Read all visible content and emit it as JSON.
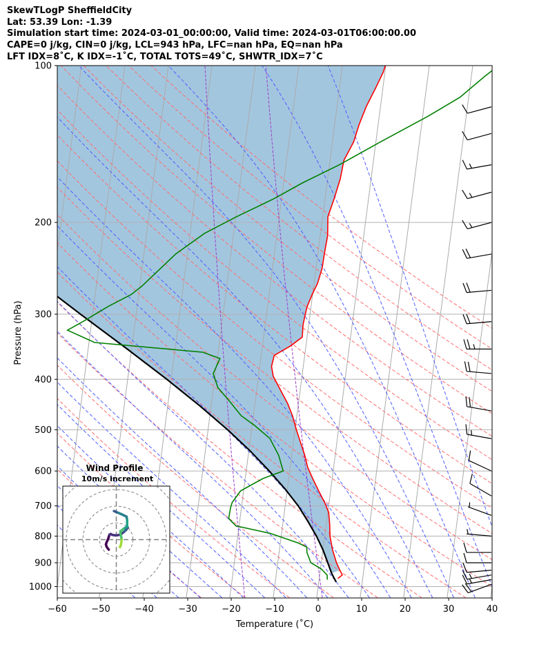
{
  "header": {
    "line1": "SkewTLogP SheffieldCity",
    "line2": "Lat: 53.39   Lon: -1.39",
    "line3": "Simulation start time: 2024-03-01_00:00:00, Valid time: 2024-03-01T06:00:00.00",
    "line4": "CAPE=0 j/kg, CIN=0 j/kg, LCL=943 hPa, LFC=nan hPa, EQ=nan hPa",
    "line5": "LFT IDX=8˚C, K IDX=-1˚C, TOTAL TOTS=49˚C, SHWTR_IDX=7˚C"
  },
  "chart_data": {
    "type": "skewt",
    "xlabel": "Temperature (˚C)",
    "ylabel": "Pressure (hPa)",
    "xlim": [
      -60,
      40
    ],
    "ylim": [
      1050,
      100
    ],
    "y_scale": "log",
    "x_ticks": [
      "−60",
      "−50",
      "−40",
      "−30",
      "−20",
      "−10",
      "0",
      "10",
      "20",
      "30",
      "40"
    ],
    "y_ticks": [
      "1000",
      "900",
      "800",
      "700",
      "600",
      "500",
      "400",
      "300",
      "200",
      "100"
    ],
    "grid": true,
    "colors": {
      "temperature": "#ff0000",
      "dewpoint": "#008000",
      "parcel": "#000000",
      "shading": "#a3c6df",
      "dry_adiabats": "#ff6b6b",
      "moist_adiabats": "#4d5cff",
      "isotherms": "#aaaaaa",
      "mixing_ratio": "#9a3fc8"
    },
    "series": [
      {
        "key": "temperature",
        "points": [
          [
            4.3,
            965
          ],
          [
            5.2,
            950
          ],
          [
            4.5,
            930
          ],
          [
            3.5,
            900
          ],
          [
            2.2,
            850
          ],
          [
            1.2,
            800
          ],
          [
            0.8,
            760
          ],
          [
            0.2,
            720
          ],
          [
            -1.0,
            690
          ],
          [
            -2.5,
            660
          ],
          [
            -4.5,
            620
          ],
          [
            -6.0,
            590
          ],
          [
            -7.0,
            560
          ],
          [
            -8.3,
            530
          ],
          [
            -9.7,
            500
          ],
          [
            -11.0,
            470
          ],
          [
            -12.5,
            445
          ],
          [
            -14.5,
            420
          ],
          [
            -16.6,
            395
          ],
          [
            -17.3,
            378
          ],
          [
            -17.0,
            360
          ],
          [
            -13.5,
            345
          ],
          [
            -11.1,
            332
          ],
          [
            -11.3,
            315
          ],
          [
            -11.1,
            300
          ],
          [
            -10.9,
            290
          ],
          [
            -10.1,
            275
          ],
          [
            -9.2,
            262
          ],
          [
            -8.6,
            245
          ],
          [
            -8.5,
            228
          ],
          [
            -8.3,
            212
          ],
          [
            -8.8,
            195
          ],
          [
            -7.9,
            180
          ],
          [
            -7.1,
            165
          ],
          [
            -6.8,
            152
          ],
          [
            -5.1,
            140
          ],
          [
            -4.4,
            130
          ],
          [
            -3.3,
            120
          ],
          [
            -1.6,
            110
          ],
          [
            -0.4,
            103
          ],
          [
            -0.1,
            100
          ]
        ]
      },
      {
        "key": "dewpoint",
        "points": [
          [
            1.9,
            970
          ],
          [
            1.7,
            950
          ],
          [
            0.2,
            925
          ],
          [
            -2.4,
            900
          ],
          [
            -3.6,
            860
          ],
          [
            -3.8,
            840
          ],
          [
            -5.8,
            825
          ],
          [
            -12.7,
            790
          ],
          [
            -20.7,
            765
          ],
          [
            -22.6,
            740
          ],
          [
            -22.5,
            705
          ],
          [
            -22.3,
            690
          ],
          [
            -20.7,
            655
          ],
          [
            -15.9,
            620
          ],
          [
            -11.5,
            600
          ],
          [
            -13.0,
            560
          ],
          [
            -15.5,
            520
          ],
          [
            -19.5,
            490
          ],
          [
            -22.8,
            470
          ],
          [
            -26.0,
            440
          ],
          [
            -29.0,
            415
          ],
          [
            -30.5,
            390
          ],
          [
            -29.4,
            365
          ],
          [
            -33.5,
            355
          ],
          [
            -58.7,
            340
          ],
          [
            -65.3,
            322
          ],
          [
            -62.0,
            310
          ],
          [
            -56.7,
            290
          ],
          [
            -51.7,
            275
          ],
          [
            -49.5,
            265
          ],
          [
            -46.7,
            250
          ],
          [
            -42.7,
            230
          ],
          [
            -36.7,
            210
          ],
          [
            -29.8,
            195
          ],
          [
            -21.7,
            180
          ],
          [
            -15.7,
            168
          ],
          [
            -7.7,
            155
          ],
          [
            1.1,
            140
          ],
          [
            11.3,
            125
          ],
          [
            18.0,
            115
          ],
          [
            23.0,
            105
          ],
          [
            25.9,
            100
          ]
        ]
      },
      {
        "key": "parcel",
        "points": [
          [
            4.0,
            980
          ],
          [
            3.3,
            960
          ],
          [
            2.7,
            943
          ],
          [
            1.5,
            900
          ],
          [
            0.0,
            850
          ],
          [
            -1.9,
            800
          ],
          [
            -4.3,
            750
          ],
          [
            -7.0,
            700
          ],
          [
            -10.5,
            650
          ],
          [
            -14.7,
            600
          ],
          [
            -19.6,
            550
          ],
          [
            -25.5,
            500
          ],
          [
            -32.6,
            450
          ],
          [
            -41.0,
            400
          ],
          [
            -51.0,
            350
          ],
          [
            -62.8,
            300
          ],
          [
            -76.5,
            250
          ],
          [
            -92.2,
            200
          ],
          [
            -111.0,
            150
          ],
          [
            -124.0,
            120
          ],
          [
            -133.8,
            100
          ]
        ]
      }
    ],
    "wind_barbs_kt": [
      {
        "p": 990,
        "speed": 21,
        "dir": 250
      },
      {
        "p": 970,
        "speed": 17,
        "dir": 260
      },
      {
        "p": 950,
        "speed": 15,
        "dir": 260
      },
      {
        "p": 930,
        "speed": 12,
        "dir": 265
      },
      {
        "p": 900,
        "speed": 10,
        "dir": 270
      },
      {
        "p": 860,
        "speed": 10,
        "dir": 270
      },
      {
        "p": 800,
        "speed": 8,
        "dir": 275
      },
      {
        "p": 730,
        "speed": 8,
        "dir": 290
      },
      {
        "p": 670,
        "speed": 10,
        "dir": 300
      },
      {
        "p": 600,
        "speed": 11,
        "dir": 295
      },
      {
        "p": 520,
        "speed": 16,
        "dir": 280
      },
      {
        "p": 460,
        "speed": 20,
        "dir": 280
      },
      {
        "p": 390,
        "speed": 22,
        "dir": 275
      },
      {
        "p": 350,
        "speed": 26,
        "dir": 270
      },
      {
        "p": 310,
        "speed": 22,
        "dir": 265
      },
      {
        "p": 270,
        "speed": 23,
        "dir": 265
      },
      {
        "p": 230,
        "speed": 22,
        "dir": 260
      },
      {
        "p": 200,
        "speed": 16,
        "dir": 255
      },
      {
        "p": 175,
        "speed": 18,
        "dir": 255
      },
      {
        "p": 155,
        "speed": 15,
        "dir": 260
      },
      {
        "p": 135,
        "speed": 12,
        "dir": 255
      },
      {
        "p": 120,
        "speed": 11,
        "dir": 255
      }
    ],
    "hodograph": {
      "title": "Wind Profile",
      "subtitle": "10m/s increment",
      "rings_ms": [
        10,
        20,
        30,
        40
      ],
      "range_ms": [
        -25,
        25
      ],
      "colormap": "viridis",
      "uv_ms": [
        [
          2.2,
          -4.5
        ],
        [
          2.7,
          -3.4
        ],
        [
          3.0,
          -1.8
        ],
        [
          3.2,
          -0.2
        ],
        [
          3.0,
          1.6
        ],
        [
          2.6,
          3.3
        ],
        [
          2.5,
          5.0
        ],
        [
          4.0,
          6.2
        ],
        [
          6.5,
          7.8
        ],
        [
          6.5,
          10.1
        ],
        [
          6.5,
          11.8
        ],
        [
          6.1,
          13.8
        ],
        [
          4.4,
          14.6
        ],
        [
          2.7,
          15.4
        ],
        [
          1.3,
          16.0
        ],
        [
          -0.4,
          16.7
        ],
        [
          -1.4,
          17.1
        ]
      ],
      "uv_ms_lower": [
        [
          -4.5,
          -6.0
        ],
        [
          -5.3,
          -5.0
        ],
        [
          -5.9,
          -4.0
        ],
        [
          -6.2,
          -2.8
        ],
        [
          -5.8,
          -1.6
        ],
        [
          -5.3,
          -0.5
        ],
        [
          -4.6,
          1.3
        ],
        [
          -4.1,
          3.0
        ],
        [
          -3.3,
          3.4
        ],
        [
          -2.6,
          2.9
        ],
        [
          -1.5,
          2.7
        ],
        [
          -0.2,
          2.5
        ],
        [
          1.6,
          2.8
        ],
        [
          3.1,
          3.5
        ],
        [
          4.6,
          4.6
        ],
        [
          5.9,
          5.8
        ],
        [
          6.9,
          7.3
        ]
      ]
    }
  }
}
